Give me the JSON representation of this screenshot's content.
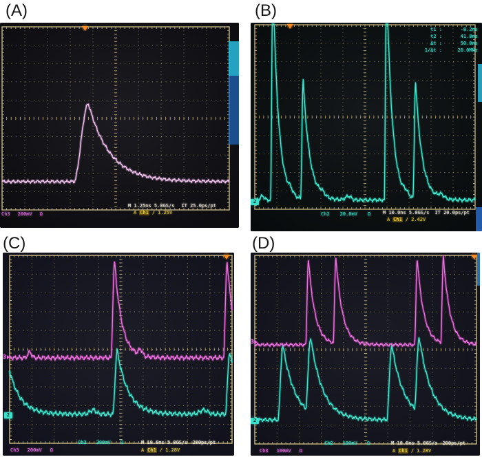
{
  "figure": {
    "panels": [
      {
        "label": "(A)",
        "channel_readouts": [
          {
            "ch": "Ch3",
            "scale": "200mV",
            "coupling": "Ω",
            "color": "#e56fe0"
          }
        ],
        "timebase": {
          "main": "M 1.25ns 5.0GS/s",
          "acq": "IT 25.0ps/pt"
        },
        "trigger": {
          "mode": "A",
          "source": "Ch1",
          "slope": "∕",
          "level": "1.25V"
        }
      },
      {
        "label": "(B)",
        "channel_readouts": [
          {
            "ch": "Ch2",
            "scale": "20.0mV",
            "coupling": "Ω",
            "color": "#35e0c8"
          }
        ],
        "timebase": {
          "main": "M 10.0ns 5.0GS/s",
          "acq": "IT 20.0ps/pt"
        },
        "trigger": {
          "mode": "A",
          "source": "Ch1",
          "slope": "∕",
          "level": "2.42V"
        },
        "measurements": [
          {
            "label": "t1 :",
            "value": "-8.2ns"
          },
          {
            "label": "t2 :",
            "value": "41.8ns"
          },
          {
            "label": "Δt :",
            "value": "50.0ns"
          },
          {
            "label": "1/Δt :",
            "value": "20.0MHz"
          }
        ],
        "channel_marker_2": "2"
      },
      {
        "label": "(C)",
        "channel_readouts": [
          {
            "ch": "Ch2",
            "scale": "200mV",
            "coupling": "Ω",
            "color": "#35e0c8"
          },
          {
            "ch": "Ch3",
            "scale": "200mV",
            "coupling": "Ω",
            "color": "#e56fe0"
          }
        ],
        "timebase": {
          "main": "M 10.0ns 5.0GS/s",
          "acq": "200ps/pt"
        },
        "trigger": {
          "mode": "A",
          "source": "Ch1",
          "slope": "∕",
          "level": "1.28V"
        },
        "channel_marker_2": "2",
        "channel_marker_3": "3"
      },
      {
        "label": "(D)",
        "channel_readouts": [
          {
            "ch": "Ch2",
            "scale": "100mV",
            "coupling": "Ω",
            "color": "#35e0c8"
          },
          {
            "ch": "Ch3",
            "scale": "100mV",
            "coupling": "Ω",
            "color": "#e56fe0"
          }
        ],
        "timebase": {
          "main": "M 10.0ns 5.0GS/s",
          "acq": "200ps/pt"
        },
        "trigger": {
          "mode": "A",
          "source": "Ch1",
          "slope": "∕",
          "level": "1.28V"
        },
        "channel_marker_2": "2",
        "channel_marker_3": "3"
      }
    ],
    "colors": {
      "trace_cyan": "#49eed4",
      "trace_magenta": "#ef79e2",
      "trace_pale_pink": "#f6d0f2",
      "graticule": "#cdbf8c",
      "trigger_marker": "#ff8e1f",
      "trigger_text": "#d9c23f"
    }
  },
  "chart_data": [
    {
      "panel": "A",
      "type": "line",
      "instrument": "oscilloscope",
      "x_axis": {
        "per_div": 1.25,
        "units": "ns/div",
        "divisions": 10
      },
      "y_axis": {
        "divisions": 10
      },
      "trigger_marker_x_div": 3.65,
      "series": [
        {
          "name": "Ch3",
          "per_div": "200mV",
          "color_core": "#f6d0f2",
          "color_glow": "#d183cf",
          "baseline_div": 8.45,
          "noise_div": 0.05,
          "seed": 1.3,
          "pulses": [
            {
              "x_div": 3.8,
              "height_div": 4.25,
              "rise_div": 0.62,
              "decay_div": 0.95
            }
          ],
          "bumps": []
        }
      ]
    },
    {
      "panel": "B",
      "type": "line",
      "instrument": "oscilloscope",
      "x_axis": {
        "per_div": 10,
        "units": "ns/div",
        "divisions": 10
      },
      "y_axis": {
        "divisions": 10
      },
      "trigger_marker_x_div": 1.6,
      "series": [
        {
          "name": "Ch2",
          "per_div": "20.0mV",
          "color_core": "#49eed4",
          "color_glow": "#18bda4",
          "baseline_div": 9.5,
          "noise_div": 0.06,
          "seed": 2.1,
          "pulses": [
            {
              "x_div": 0.82,
              "height_div": 12,
              "rise_div": 0.1,
              "decay_div": 0.26
            },
            {
              "x_div": 2.2,
              "height_div": 6.4,
              "rise_div": 0.12,
              "decay_div": 0.3
            },
            {
              "x_div": 5.98,
              "height_div": 12,
              "rise_div": 0.1,
              "decay_div": 0.26
            },
            {
              "x_div": 7.3,
              "height_div": 6.3,
              "rise_div": 0.12,
              "decay_div": 0.3
            }
          ],
          "bumps": [
            {
              "x_div": 0.35,
              "height_div": 0.22,
              "width_div": 0.12
            },
            {
              "x_div": 1.62,
              "height_div": 0.22,
              "width_div": 0.15
            },
            {
              "x_div": 3.05,
              "height_div": 0.18,
              "width_div": 0.18
            },
            {
              "x_div": 4.25,
              "height_div": 0.2,
              "width_div": 0.18
            },
            {
              "x_div": 6.85,
              "height_div": 0.2,
              "width_div": 0.15
            },
            {
              "x_div": 8.45,
              "height_div": 0.2,
              "width_div": 0.2
            }
          ]
        }
      ]
    },
    {
      "panel": "C",
      "type": "line",
      "instrument": "oscilloscope",
      "x_axis": {
        "per_div": 10,
        "units": "ns/div",
        "divisions": 10
      },
      "y_axis": {
        "divisions": 10
      },
      "trigger_marker_x_div": 9.75,
      "series": [
        {
          "name": "Ch2",
          "per_div": "200mV",
          "color_core": "#49eed4",
          "color_glow": "#18bda4",
          "baseline_div": 8.45,
          "noise_div": 0.07,
          "seed": 3.7,
          "pulses": [
            {
              "x_div": -0.18,
              "height_div": 3.3,
              "rise_div": 0.2,
              "decay_div": 0.5
            },
            {
              "x_div": 4.84,
              "height_div": 3.35,
              "rise_div": 0.2,
              "decay_div": 0.5
            },
            {
              "x_div": 9.9,
              "height_div": 3.3,
              "rise_div": 0.2,
              "decay_div": 0.5
            }
          ],
          "bumps": [
            {
              "x_div": 3.75,
              "height_div": 0.22,
              "width_div": 0.2
            },
            {
              "x_div": 8.72,
              "height_div": 0.22,
              "width_div": 0.25
            }
          ]
        },
        {
          "name": "Ch3",
          "per_div": "200mV",
          "color_core": "#ef79e2",
          "color_glow": "#c438b4",
          "baseline_div": 5.45,
          "noise_div": 0.07,
          "seed": 4.2,
          "pulses": [
            {
              "x_div": 4.72,
              "height_div": 5.1,
              "rise_div": 0.16,
              "decay_div": 0.33
            },
            {
              "x_div": 9.78,
              "height_div": 5.1,
              "rise_div": 0.16,
              "decay_div": 0.33
            }
          ],
          "bumps": [
            {
              "x_div": 0.9,
              "height_div": 0.3,
              "width_div": 0.12
            },
            {
              "x_div": 5.88,
              "height_div": 0.32,
              "width_div": 0.12
            }
          ]
        }
      ]
    },
    {
      "panel": "D",
      "type": "line",
      "instrument": "oscilloscope",
      "x_axis": {
        "per_div": 10,
        "units": "ns/div",
        "divisions": 10
      },
      "y_axis": {
        "divisions": 10
      },
      "trigger_marker_x_div": 9.9,
      "series": [
        {
          "name": "Ch2",
          "per_div": "100mV",
          "color_core": "#49eed4",
          "color_glow": "#18bda4",
          "baseline_div": 8.72,
          "noise_div": 0.06,
          "seed": 5.9,
          "pulses": [
            {
              "x_div": 1.27,
              "height_div": 3.95,
              "rise_div": 0.22,
              "decay_div": 0.55
            },
            {
              "x_div": 2.52,
              "height_div": 3.95,
              "rise_div": 0.22,
              "decay_div": 0.55
            },
            {
              "x_div": 6.18,
              "height_div": 3.95,
              "rise_div": 0.22,
              "decay_div": 0.55
            },
            {
              "x_div": 7.42,
              "height_div": 3.95,
              "rise_div": 0.22,
              "decay_div": 0.55
            }
          ],
          "bumps": []
        },
        {
          "name": "Ch3",
          "per_div": "100mV",
          "color_core": "#ef79e2",
          "color_glow": "#c438b4",
          "baseline_div": 4.74,
          "noise_div": 0.05,
          "seed": 6.4,
          "pulses": [
            {
              "x_div": 2.42,
              "height_div": 4.55,
              "rise_div": 0.12,
              "decay_div": 0.3
            },
            {
              "x_div": 3.66,
              "height_div": 4.55,
              "rise_div": 0.12,
              "decay_div": 0.3
            },
            {
              "x_div": 7.33,
              "height_div": 4.55,
              "rise_div": 0.12,
              "decay_div": 0.3
            },
            {
              "x_div": 8.51,
              "height_div": 4.55,
              "rise_div": 0.12,
              "decay_div": 0.3
            }
          ],
          "bumps": []
        }
      ]
    }
  ]
}
